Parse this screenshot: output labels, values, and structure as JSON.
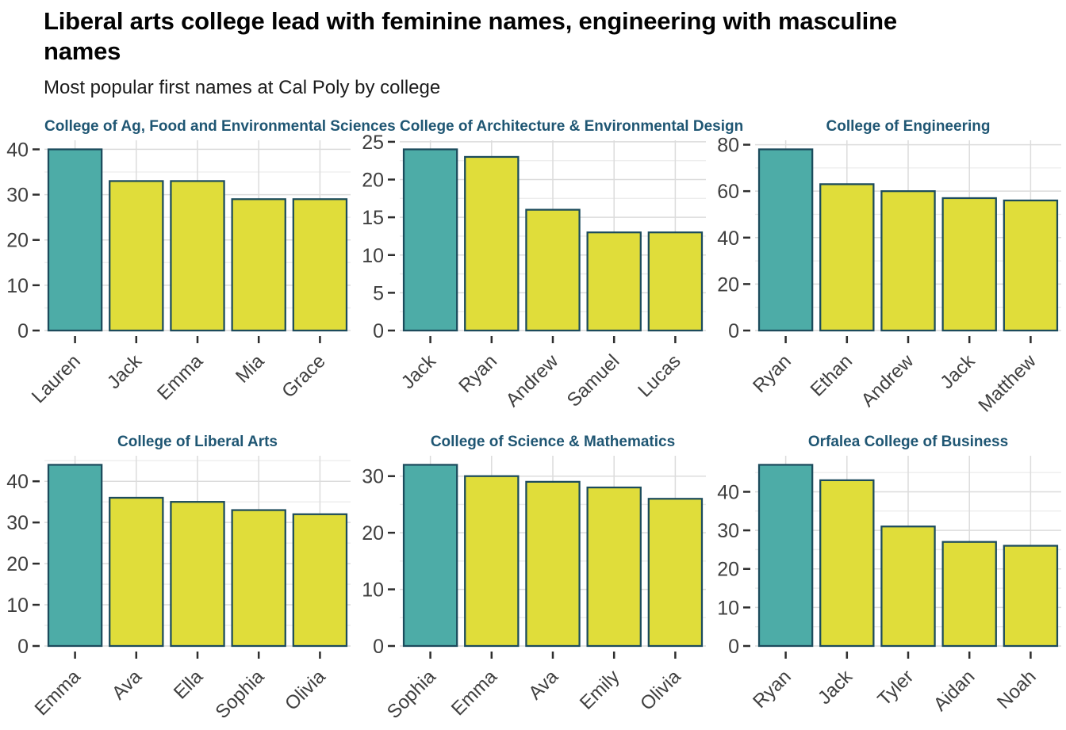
{
  "page": {
    "title": "Liberal arts college lead with feminine names, engineering with masculine names",
    "subtitle": "Most popular first names at Cal Poly by college"
  },
  "colors": {
    "highlight": "#4DACA7",
    "default_bar": "#E0DD3A",
    "bar_outline": "#1C4B5C",
    "facet_title": "#1F5673",
    "axis_text": "#3F3F3F",
    "tick_mark": "#2E2E2E",
    "grid_major": "#DCDCDC",
    "grid_minor": "#ECECEC",
    "title_text": "#030303",
    "subtitle_text": "#1C1C1C"
  },
  "chart_data": [
    {
      "type": "bar",
      "title": "College of Ag, Food and Environmental Sciences",
      "categories": [
        "Lauren",
        "Jack",
        "Emma",
        "Mia",
        "Grace"
      ],
      "values": [
        40,
        33,
        33,
        29,
        29
      ],
      "highlight_index": 0,
      "yticks": [
        0,
        10,
        20,
        30,
        40
      ],
      "ylim": [
        0,
        42
      ],
      "xlabel": "",
      "ylabel": "",
      "grid": true,
      "legend": false
    },
    {
      "type": "bar",
      "title": "College of Architecture & Environmental Design",
      "categories": [
        "Jack",
        "Ryan",
        "Andrew",
        "Samuel",
        "Lucas"
      ],
      "values": [
        24,
        23,
        16,
        13,
        13
      ],
      "highlight_index": 0,
      "yticks": [
        0,
        5,
        10,
        15,
        20,
        25
      ],
      "ylim": [
        0,
        25.2
      ],
      "xlabel": "",
      "ylabel": "",
      "grid": true,
      "legend": false
    },
    {
      "type": "bar",
      "title": "College of Engineering",
      "categories": [
        "Ryan",
        "Ethan",
        "Andrew",
        "Jack",
        "Matthew"
      ],
      "values": [
        78,
        63,
        60,
        57,
        56
      ],
      "highlight_index": 0,
      "yticks": [
        0,
        20,
        40,
        60,
        80
      ],
      "ylim": [
        0,
        81.9
      ],
      "xlabel": "",
      "ylabel": "",
      "grid": true,
      "legend": false
    },
    {
      "type": "bar",
      "title": "College of Liberal Arts",
      "categories": [
        "Emma",
        "Ava",
        "Ella",
        "Sophia",
        "Olivia"
      ],
      "values": [
        44,
        36,
        35,
        33,
        32
      ],
      "highlight_index": 0,
      "yticks": [
        0,
        10,
        20,
        30,
        40
      ],
      "ylim": [
        0,
        46.2
      ],
      "xlabel": "",
      "ylabel": "",
      "grid": true,
      "legend": false
    },
    {
      "type": "bar",
      "title": "College of Science & Mathematics",
      "categories": [
        "Sophia",
        "Emma",
        "Ava",
        "Emily",
        "Olivia"
      ],
      "values": [
        32,
        30,
        29,
        28,
        26
      ],
      "highlight_index": 0,
      "yticks": [
        0,
        10,
        20,
        30
      ],
      "ylim": [
        0,
        33.6
      ],
      "xlabel": "",
      "ylabel": "",
      "grid": true,
      "legend": false
    },
    {
      "type": "bar",
      "title": "Orfalea College of Business",
      "categories": [
        "Ryan",
        "Jack",
        "Tyler",
        "Aidan",
        "Noah"
      ],
      "values": [
        47,
        43,
        31,
        27,
        26
      ],
      "highlight_index": 0,
      "yticks": [
        0,
        10,
        20,
        30,
        40
      ],
      "ylim": [
        0,
        49.35
      ],
      "xlabel": "",
      "ylabel": "",
      "grid": true,
      "legend": false
    }
  ]
}
